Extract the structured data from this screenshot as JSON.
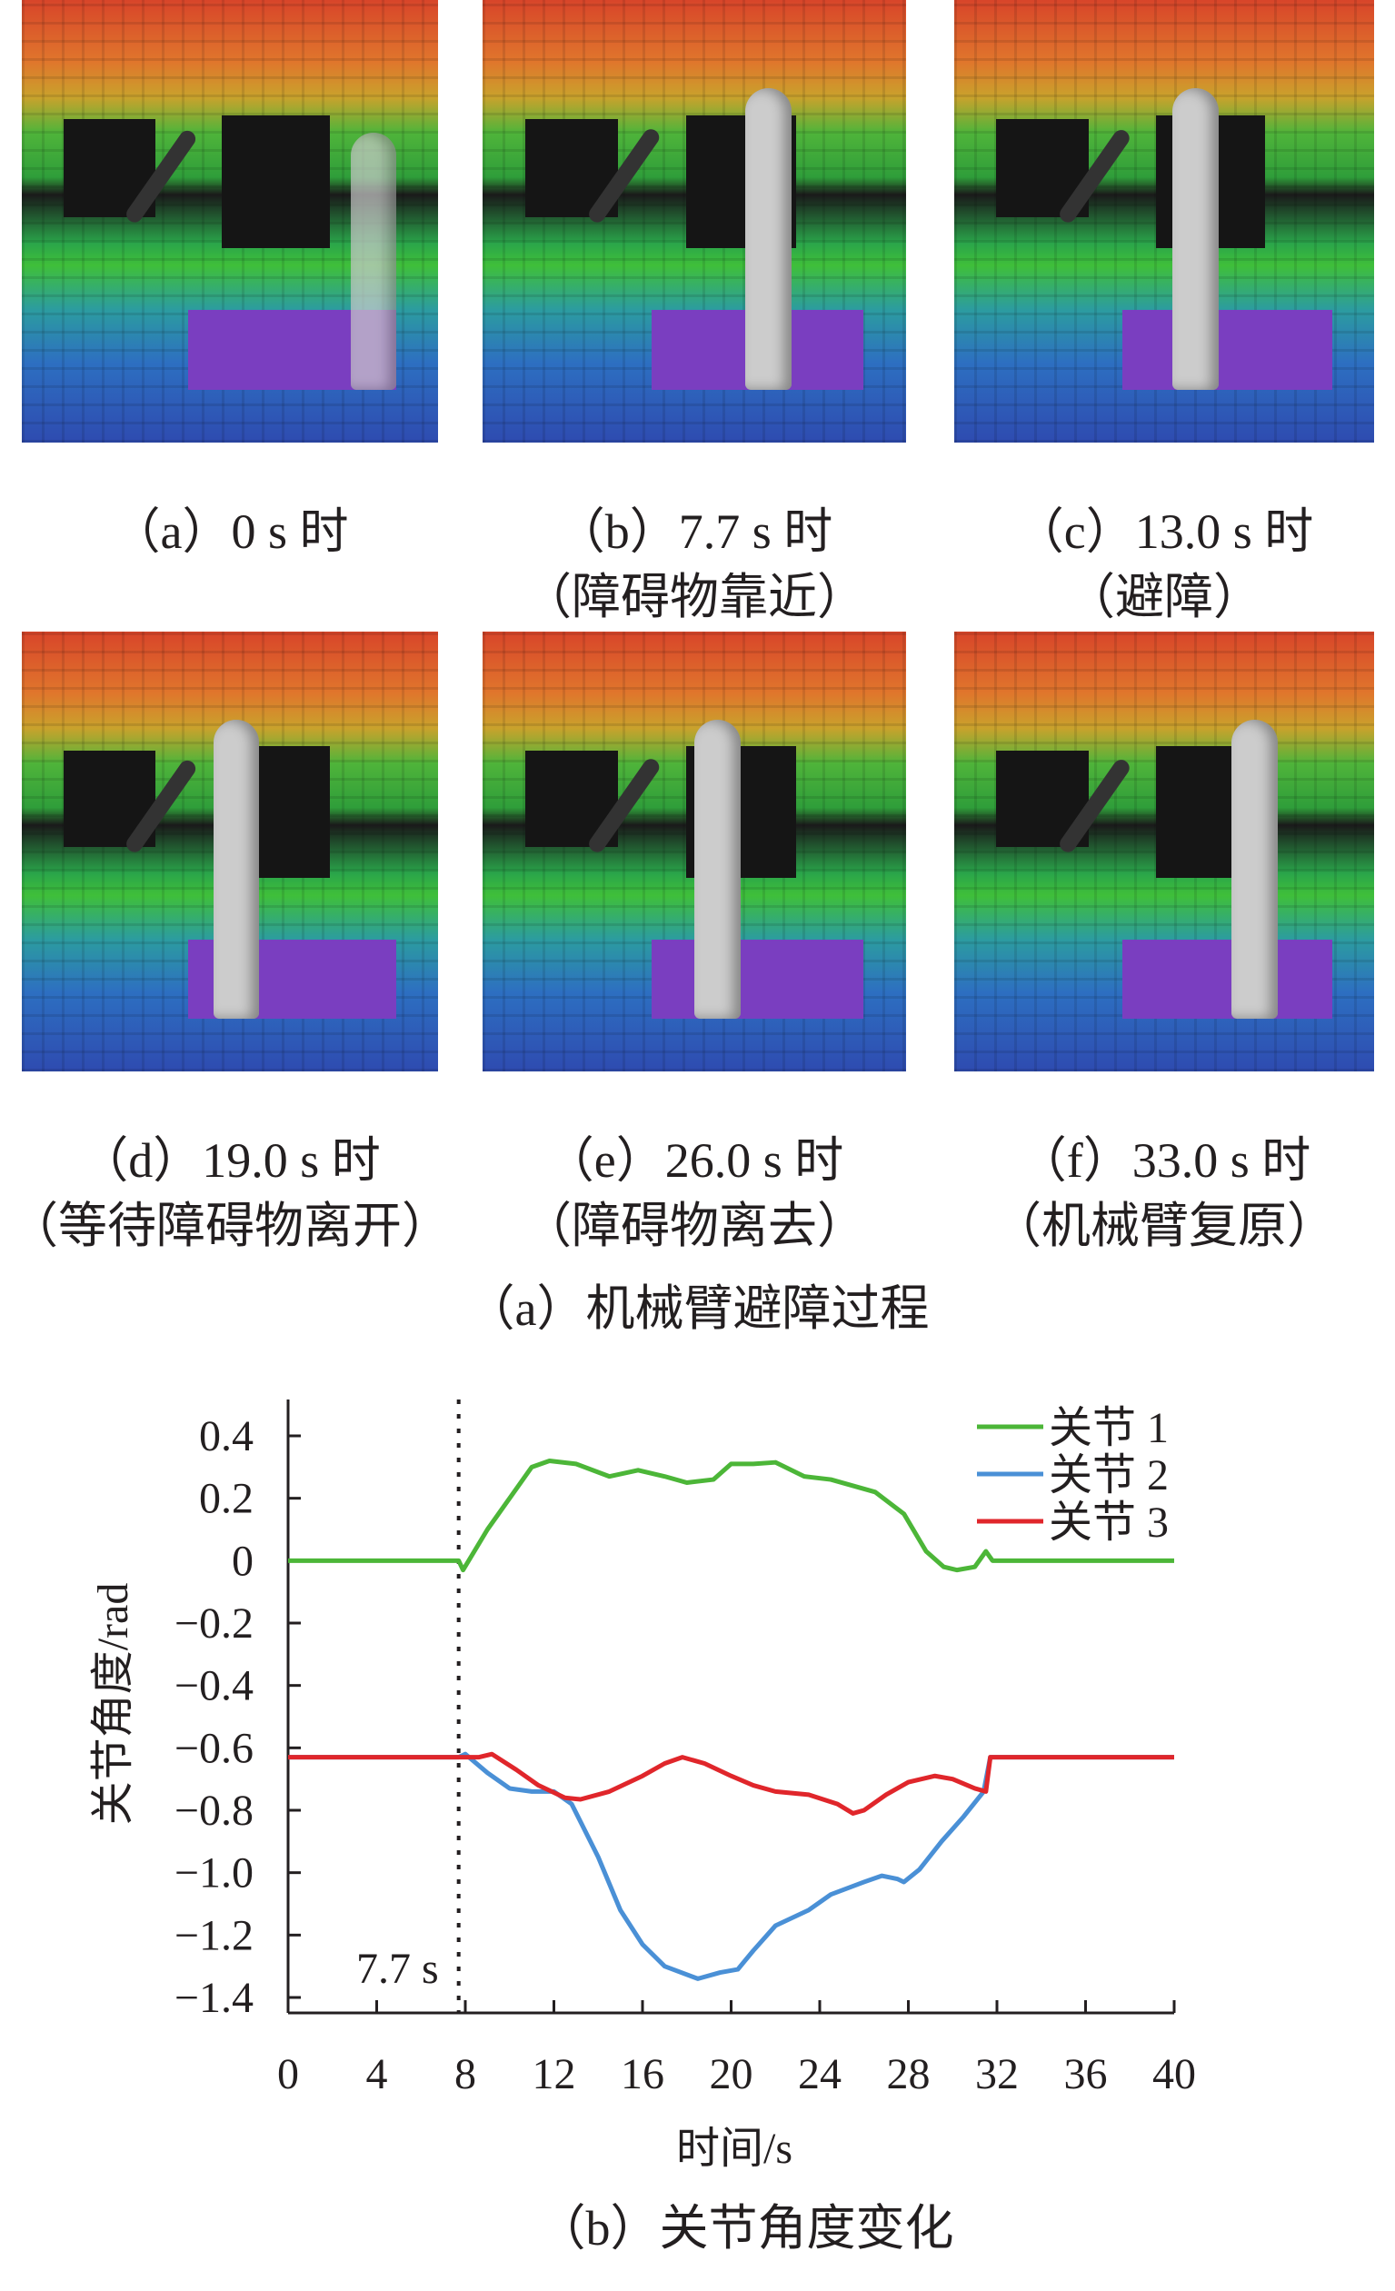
{
  "panel_a": {
    "frames": [
      {
        "label": "（a）0 s 时",
        "note": "",
        "human_visible": "partial"
      },
      {
        "label": "（b）7.7 s 时",
        "note": "（障碍物靠近）",
        "human_visible": "yes"
      },
      {
        "label": "（c）13.0 s 时",
        "note": "（避障）",
        "human_visible": "yes"
      },
      {
        "label": "（d）19.0 s 时",
        "note": "（等待障碍物离开）",
        "human_visible": "yes"
      },
      {
        "label": "（e）26.0 s 时",
        "note": "（障碍物离去）",
        "human_visible": "yes"
      },
      {
        "label": "（f）33.0 s 时",
        "note": "（机械臂复原）",
        "human_visible": "yes"
      }
    ],
    "caption": "（a）机械臂避障过程"
  },
  "chart_data": {
    "type": "line",
    "title": "",
    "caption": "（b）关节角度变化",
    "xlabel": "时间/s",
    "ylabel": "关节角度/rad",
    "xlim": [
      0,
      40
    ],
    "ylim": [
      -1.5,
      0.5
    ],
    "xticks": [
      "0",
      "4",
      "8",
      "12",
      "16",
      "20",
      "24",
      "28",
      "32",
      "36",
      "40"
    ],
    "yticks": [
      "0.4",
      "0.2",
      "0",
      "−0.2",
      "−0.4",
      "−0.6",
      "−0.8",
      "−1.0",
      "−1.2",
      "−1.4"
    ],
    "ytick_values": [
      0.4,
      0.2,
      0,
      -0.2,
      -0.4,
      -0.6,
      -0.8,
      -1.0,
      -1.2,
      -1.4
    ],
    "legend_position": "top-right",
    "annotation": {
      "x": 7.7,
      "label": "7.7 s",
      "style": "dotted vertical line"
    },
    "series": [
      {
        "name": "关节 1",
        "color": "#4cb638",
        "points": [
          [
            0,
            0
          ],
          [
            7.7,
            0
          ],
          [
            7.9,
            -0.03
          ],
          [
            9,
            0.1
          ],
          [
            10,
            0.2
          ],
          [
            11,
            0.3
          ],
          [
            11.8,
            0.32
          ],
          [
            13,
            0.31
          ],
          [
            14.5,
            0.27
          ],
          [
            15.8,
            0.29
          ],
          [
            17,
            0.27
          ],
          [
            18,
            0.25
          ],
          [
            19.2,
            0.26
          ],
          [
            20,
            0.31
          ],
          [
            21,
            0.31
          ],
          [
            22,
            0.315
          ],
          [
            23.3,
            0.27
          ],
          [
            24.5,
            0.26
          ],
          [
            25.5,
            0.24
          ],
          [
            26.5,
            0.22
          ],
          [
            27.8,
            0.15
          ],
          [
            28.8,
            0.03
          ],
          [
            29.6,
            -0.02
          ],
          [
            30.2,
            -0.03
          ],
          [
            31,
            -0.02
          ],
          [
            31.5,
            0.03
          ],
          [
            31.8,
            0
          ],
          [
            40,
            0
          ]
        ]
      },
      {
        "name": "关节 2",
        "color": "#4a90d6",
        "points": [
          [
            0,
            -0.63
          ],
          [
            7.7,
            -0.63
          ],
          [
            8,
            -0.62
          ],
          [
            9,
            -0.68
          ],
          [
            10,
            -0.73
          ],
          [
            11,
            -0.74
          ],
          [
            12,
            -0.74
          ],
          [
            12.8,
            -0.78
          ],
          [
            14,
            -0.95
          ],
          [
            15,
            -1.12
          ],
          [
            16,
            -1.23
          ],
          [
            17,
            -1.3
          ],
          [
            18.5,
            -1.34
          ],
          [
            19.5,
            -1.32
          ],
          [
            20.3,
            -1.31
          ],
          [
            21,
            -1.25
          ],
          [
            22,
            -1.17
          ],
          [
            23.5,
            -1.12
          ],
          [
            24.5,
            -1.07
          ],
          [
            26,
            -1.03
          ],
          [
            26.8,
            -1.01
          ],
          [
            27.5,
            -1.02
          ],
          [
            27.8,
            -1.03
          ],
          [
            28.5,
            -0.99
          ],
          [
            29.5,
            -0.9
          ],
          [
            30.5,
            -0.82
          ],
          [
            31.4,
            -0.74
          ],
          [
            31.7,
            -0.63
          ],
          [
            40,
            -0.63
          ]
        ]
      },
      {
        "name": "关节 3",
        "color": "#e0262b",
        "points": [
          [
            0,
            -0.63
          ],
          [
            8.6,
            -0.63
          ],
          [
            9.2,
            -0.62
          ],
          [
            10.3,
            -0.67
          ],
          [
            11.3,
            -0.72
          ],
          [
            12.5,
            -0.76
          ],
          [
            13.2,
            -0.765
          ],
          [
            14.5,
            -0.74
          ],
          [
            16,
            -0.69
          ],
          [
            17,
            -0.65
          ],
          [
            17.8,
            -0.63
          ],
          [
            18.8,
            -0.65
          ],
          [
            20,
            -0.69
          ],
          [
            21,
            -0.72
          ],
          [
            22,
            -0.74
          ],
          [
            23.5,
            -0.75
          ],
          [
            24.8,
            -0.78
          ],
          [
            25.5,
            -0.81
          ],
          [
            26,
            -0.8
          ],
          [
            27,
            -0.75
          ],
          [
            28,
            -0.71
          ],
          [
            29.2,
            -0.69
          ],
          [
            30,
            -0.7
          ],
          [
            31,
            -0.73
          ],
          [
            31.5,
            -0.74
          ],
          [
            31.7,
            -0.63
          ],
          [
            40,
            -0.63
          ]
        ]
      }
    ]
  }
}
